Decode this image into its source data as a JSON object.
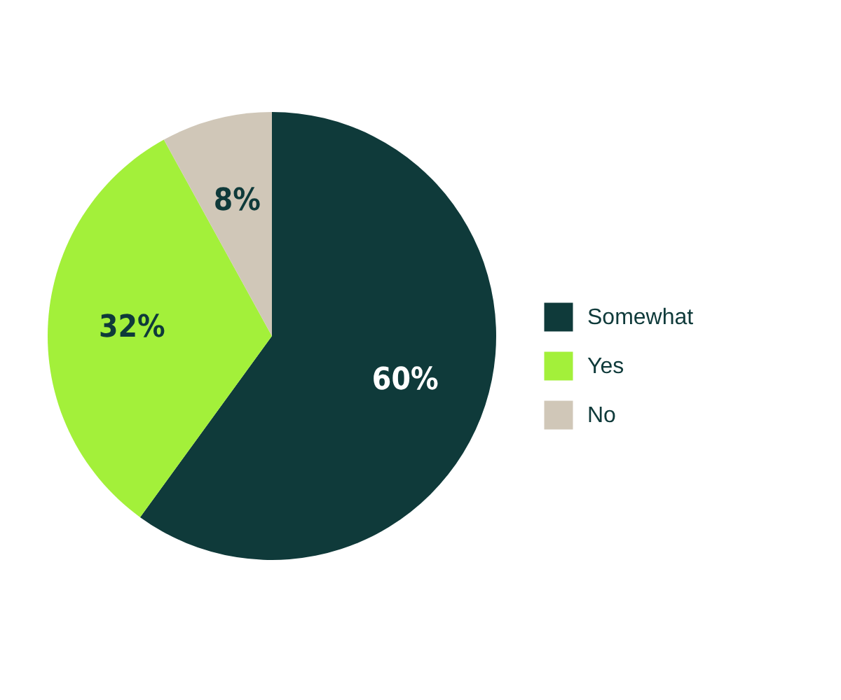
{
  "chart_data": {
    "type": "pie",
    "categories": [
      "Somewhat",
      "Yes",
      "No"
    ],
    "values": [
      60,
      32,
      8
    ],
    "colors": [
      "#0f3a3a",
      "#a3f03a",
      "#d0c7b8"
    ],
    "value_labels": [
      "60%",
      "32%",
      "8%"
    ],
    "legend": "right"
  }
}
